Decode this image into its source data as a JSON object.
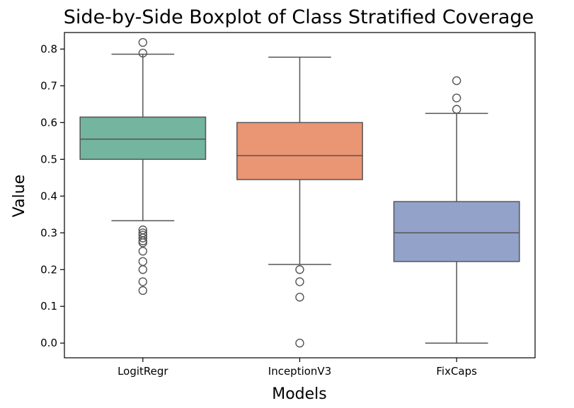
{
  "chart_data": {
    "type": "boxplot",
    "title": "Side-by-Side Boxplot of Class Stratified Coverage",
    "xlabel": "Models",
    "ylabel": "Value",
    "ylim": [
      -0.04,
      0.845
    ],
    "yticks": [
      0.0,
      0.1,
      0.2,
      0.3,
      0.4,
      0.5,
      0.6,
      0.7,
      0.8
    ],
    "ytick_labels": [
      "0.0",
      "0.1",
      "0.2",
      "0.3",
      "0.4",
      "0.5",
      "0.6",
      "0.7",
      "0.8"
    ],
    "grid": false,
    "categories": [
      "LogitRegr",
      "InceptionV3",
      "FixCaps"
    ],
    "series": [
      {
        "category": "LogitRegr",
        "color": "#73b59f",
        "whisker_low": 0.333,
        "q1": 0.5,
        "median": 0.555,
        "q3": 0.615,
        "whisker_high": 0.786,
        "outliers": [
          0.818,
          0.789,
          0.308,
          0.3,
          0.294,
          0.286,
          0.278,
          0.273,
          0.25,
          0.222,
          0.2,
          0.167,
          0.143
        ]
      },
      {
        "category": "InceptionV3",
        "color": "#ea9573",
        "whisker_low": 0.214,
        "q1": 0.445,
        "median": 0.51,
        "q3": 0.6,
        "whisker_high": 0.778,
        "outliers": [
          0.2,
          0.167,
          0.125,
          0.0
        ]
      },
      {
        "category": "FixCaps",
        "color": "#92a2c8",
        "whisker_low": 0.0,
        "q1": 0.222,
        "median": 0.3,
        "q3": 0.385,
        "whisker_high": 0.625,
        "outliers": [
          0.714,
          0.667,
          0.636
        ]
      }
    ]
  }
}
